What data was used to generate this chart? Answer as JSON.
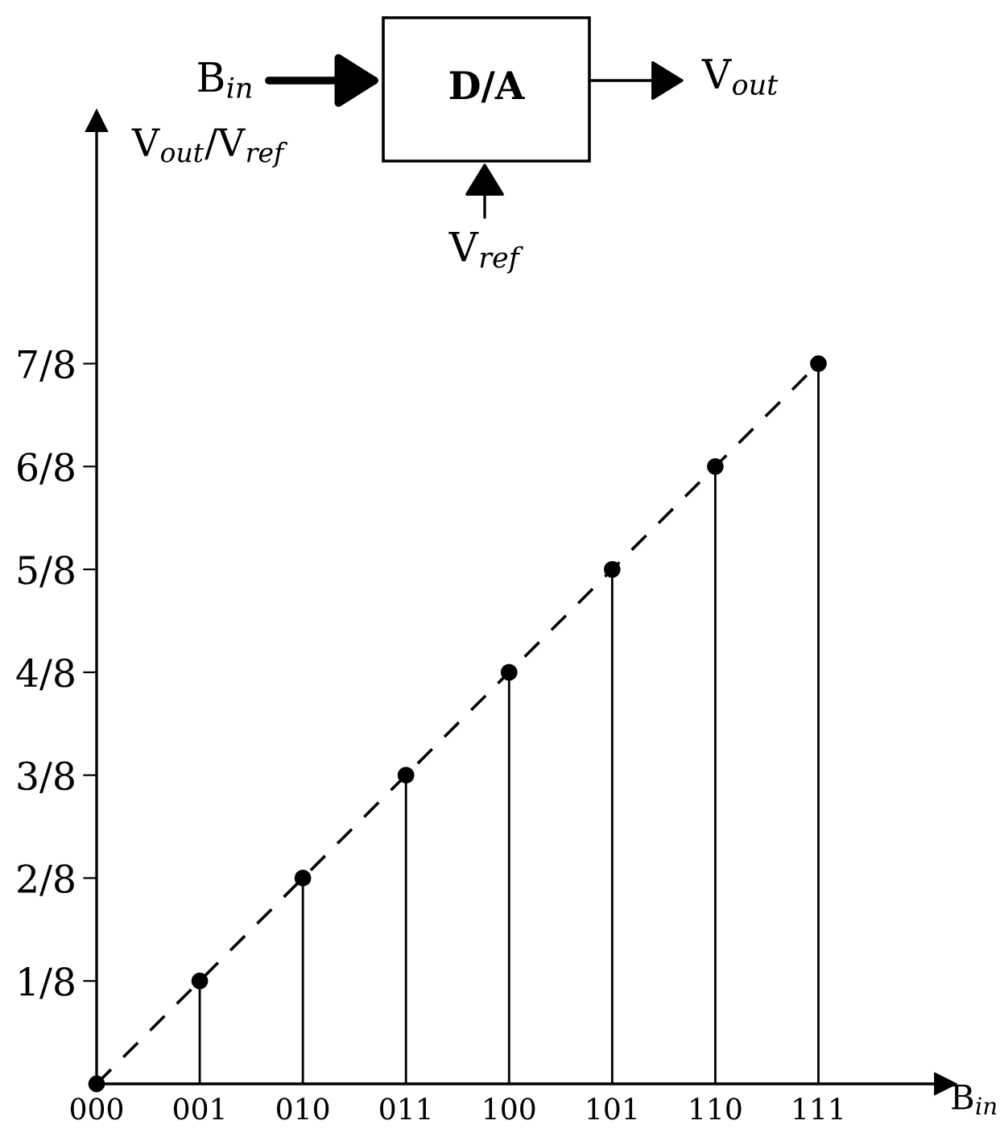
{
  "chart_data": {
    "type": "lollipop",
    "categories": [
      "000",
      "001",
      "010",
      "011",
      "100",
      "101",
      "110",
      "111"
    ],
    "xlabel": "B$_{in}$",
    "ylabel": "V$_{out}$/V$_{ref}$",
    "annotations": [
      "D/A",
      "B$_{in}$",
      "V$_{out}$",
      "V$_{ref}$"
    ],
    "ylim": [
      0,
      1.17
    ],
    "yticks": [
      {
        "value": 0.125,
        "label": "1/8"
      },
      {
        "value": 0.25,
        "label": "2/8"
      },
      {
        "value": 0.375,
        "label": "3/8"
      },
      {
        "value": 0.5,
        "label": "4/8"
      },
      {
        "value": 0.625,
        "label": "5/8"
      },
      {
        "value": 0.75,
        "label": "6/8"
      },
      {
        "value": 0.875,
        "label": "7/8"
      }
    ],
    "marker": "circle",
    "grid": false,
    "legend": false,
    "series": [
      {
        "color": "#000000",
        "values": [
          0,
          0.125,
          0.25,
          0.375,
          0.5,
          0.625,
          0.75,
          0.875
        ]
      },
      {
        "type": "line",
        "color": "#000000",
        "line_style": "dashed",
        "marker": "none",
        "values": [
          0,
          0.125,
          0.25,
          0.375,
          0.5,
          0.625,
          0.75,
          0.875
        ]
      }
    ]
  }
}
